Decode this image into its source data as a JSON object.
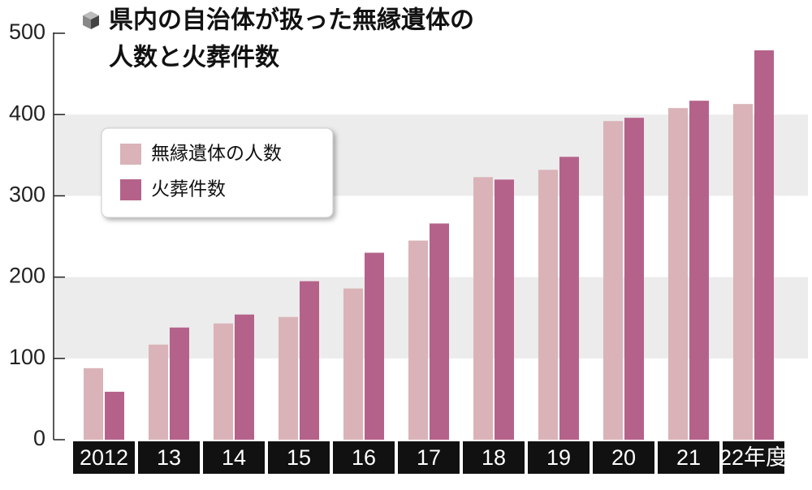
{
  "chart_data": {
    "type": "bar",
    "title": [
      "県内の自治体が扱った無縁遺体の",
      "人数と火葬件数"
    ],
    "categories": [
      "2012",
      "13",
      "14",
      "15",
      "16",
      "17",
      "18",
      "19",
      "20",
      "21",
      "22年度"
    ],
    "series": [
      {
        "name": "無縁遺体の人数",
        "color": "#d9b3b8",
        "values": [
          88,
          117,
          143,
          151,
          186,
          245,
          323,
          332,
          392,
          408,
          413
        ]
      },
      {
        "name": "火葬件数",
        "color": "#b5628a",
        "values": [
          59,
          138,
          154,
          195,
          230,
          266,
          320,
          348,
          396,
          417,
          479
        ]
      }
    ],
    "ylim": [
      0,
      500
    ],
    "yticks": [
      0,
      100,
      200,
      300,
      400,
      500
    ],
    "grid": "alternate-bands",
    "legend": "upper left"
  }
}
